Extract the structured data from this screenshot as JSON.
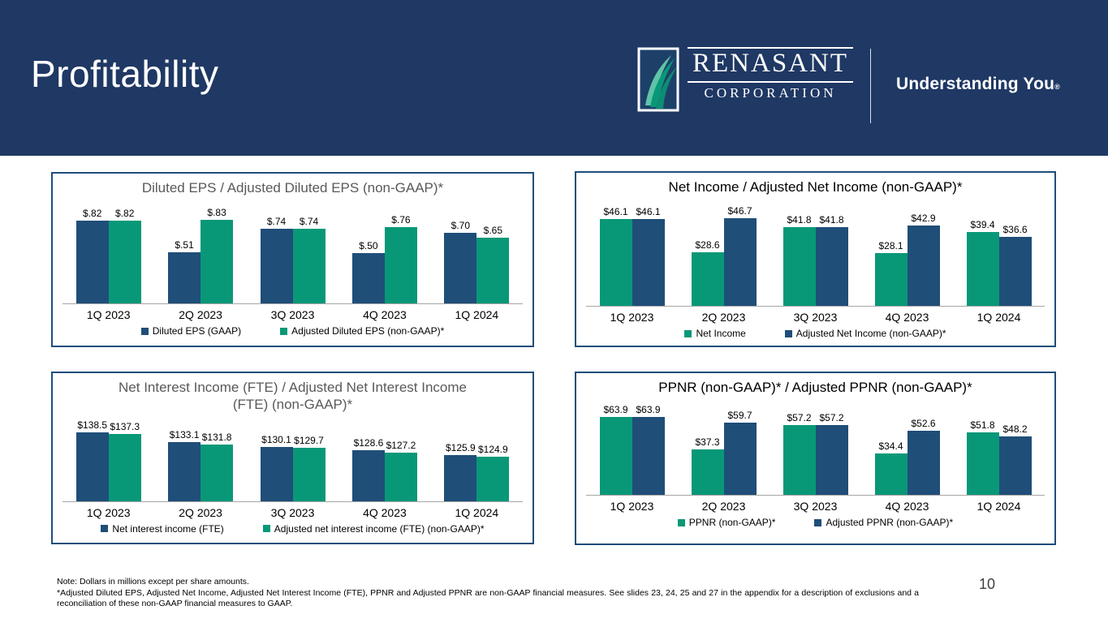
{
  "slide": {
    "title": "Profitability",
    "page_number": "10",
    "footnote_note": "Note: Dollars in millions except per share amounts.",
    "footnote_para": "*Adjusted Diluted EPS, Adjusted Net Income, Adjusted Net Interest Income (FTE), PPNR and Adjusted PPNR are non-GAAP financial measures. See slides 23, 24, 25 and 27 in the appendix for a description of exclusions and a reconciliation of these non-GAAP financial measures to GAAP."
  },
  "logo": {
    "wordmark": "RENASANT",
    "subtitle": "CORPORATION",
    "tagline": "Understanding You",
    "tagline_mark": "®"
  },
  "colors": {
    "header_navy": "#1F3864",
    "bar_blue": "#1F4E79",
    "bar_green": "#089878",
    "box_border": "#1F4E79",
    "axis_line": "#A6A6A6",
    "left_title_gray": "#595959",
    "right_title_black": "#000000"
  },
  "chart_data": [
    {
      "id": "diluted-eps",
      "type": "bar",
      "title": "Diluted EPS / Adjusted Diluted EPS (non-GAAP)*",
      "title_color": "#595959",
      "categories": [
        "1Q 2023",
        "2Q 2023",
        "3Q 2023",
        "4Q 2023",
        "1Q 2024"
      ],
      "series": [
        {
          "name": "Diluted EPS (GAAP)",
          "color": "#1F4E79",
          "values": [
            0.82,
            0.51,
            0.74,
            0.5,
            0.7
          ],
          "labels": [
            "$.82",
            "$.51",
            "$.74",
            "$.50",
            "$.70"
          ]
        },
        {
          "name": "Adjusted Diluted EPS (non-GAAP)*",
          "color": "#089878",
          "values": [
            0.82,
            0.83,
            0.74,
            0.76,
            0.65
          ],
          "labels": [
            "$.82",
            "$.83",
            "$.74",
            "$.76",
            "$.65"
          ]
        }
      ],
      "ylim": [
        0,
        0.9
      ],
      "grid": false,
      "legend_position": "bottom"
    },
    {
      "id": "net-income",
      "type": "bar",
      "title": "Net Income / Adjusted Net Income (non-GAAP)*",
      "title_color": "#000000",
      "categories": [
        "1Q 2023",
        "2Q 2023",
        "3Q 2023",
        "4Q 2023",
        "1Q 2024"
      ],
      "series": [
        {
          "name": "Net Income",
          "color": "#089878",
          "values": [
            46.1,
            28.6,
            41.8,
            28.1,
            39.4
          ],
          "labels": [
            "$46.1",
            "$28.6",
            "$41.8",
            "$28.1",
            "$39.4"
          ]
        },
        {
          "name": "Adjusted Net Income (non-GAAP)*",
          "color": "#1F4E79",
          "values": [
            46.1,
            46.7,
            41.8,
            42.9,
            36.6
          ],
          "labels": [
            "$46.1",
            "$46.7",
            "$41.8",
            "$42.9",
            "$36.6"
          ]
        }
      ],
      "ylim": [
        0,
        50
      ],
      "grid": false,
      "legend_position": "bottom"
    },
    {
      "id": "net-interest-income",
      "type": "bar",
      "title": "Net Interest Income (FTE) / Adjusted Net Interest Income (FTE) (non-GAAP)*",
      "title_color": "#595959",
      "categories": [
        "1Q 2023",
        "2Q 2023",
        "3Q 2023",
        "4Q 2023",
        "1Q 2024"
      ],
      "series": [
        {
          "name": "Net interest income (FTE)",
          "color": "#1F4E79",
          "values": [
            138.5,
            133.1,
            130.1,
            128.6,
            125.9
          ],
          "labels": [
            "$138.5",
            "$133.1",
            "$130.1",
            "$128.6",
            "$125.9"
          ]
        },
        {
          "name": "Adjusted net interest income (FTE) (non-GAAP)*",
          "color": "#089878",
          "values": [
            137.3,
            131.8,
            129.7,
            127.2,
            124.9
          ],
          "labels": [
            "$137.3",
            "$131.8",
            "$129.7",
            "$127.2",
            "$124.9"
          ]
        }
      ],
      "ylim": [
        100,
        140
      ],
      "grid": false,
      "legend_position": "bottom"
    },
    {
      "id": "ppnr",
      "type": "bar",
      "title": "PPNR (non-GAAP)* / Adjusted PPNR (non-GAAP)*",
      "title_color": "#000000",
      "categories": [
        "1Q 2023",
        "2Q 2023",
        "3Q 2023",
        "4Q 2023",
        "1Q 2024"
      ],
      "series": [
        {
          "name": "PPNR (non-GAAP)*",
          "color": "#089878",
          "values": [
            63.9,
            37.3,
            57.2,
            34.4,
            51.8
          ],
          "labels": [
            "$63.9",
            "$37.3",
            "$57.2",
            "$34.4",
            "$51.8"
          ]
        },
        {
          "name": "Adjusted PPNR (non-GAAP)*",
          "color": "#1F4E79",
          "values": [
            63.9,
            59.7,
            57.2,
            52.6,
            48.2
          ],
          "labels": [
            "$63.9",
            "$59.7",
            "$57.2",
            "$52.6",
            "$48.2"
          ]
        }
      ],
      "ylim": [
        0,
        68
      ],
      "grid": false,
      "legend_position": "bottom"
    }
  ]
}
